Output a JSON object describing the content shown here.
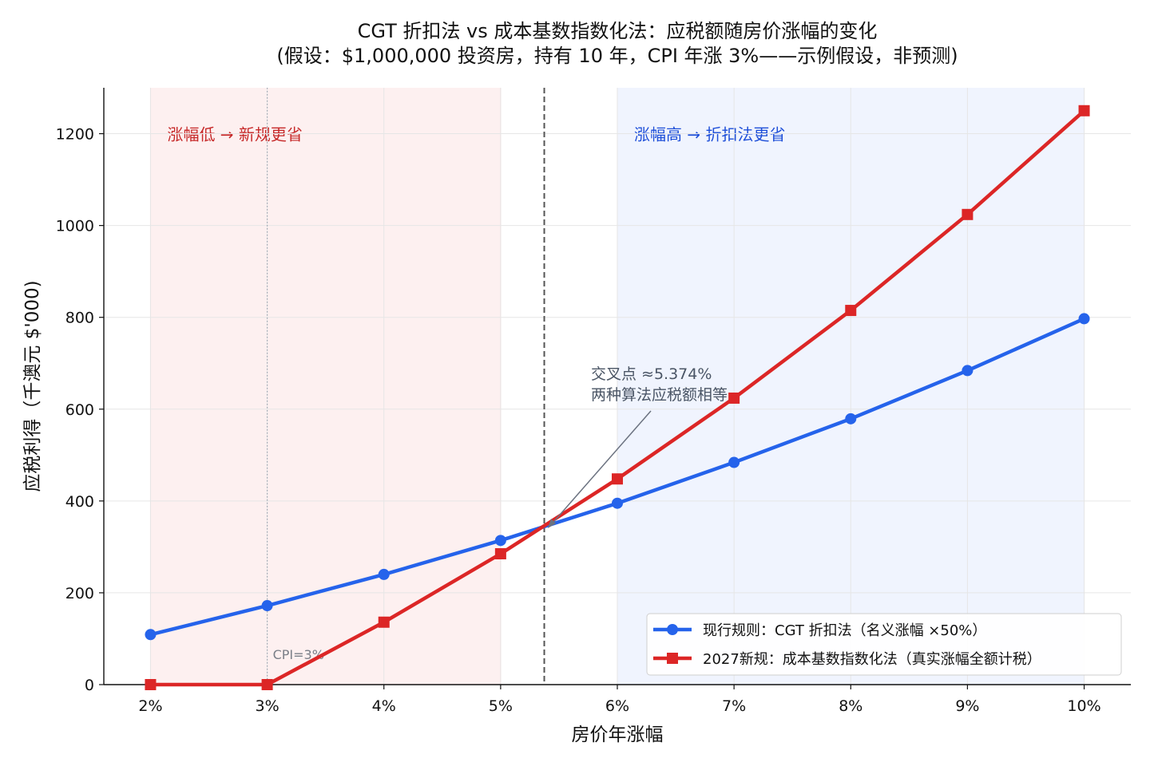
{
  "chart_data": {
    "type": "line",
    "title_lines": [
      "CGT 折扣法 vs 成本基数指数化法：应税额随房价涨幅的变化",
      "(假设：$1,000,000 投资房，持有 10 年，CPI 年涨 3%——示例假设，非预测)"
    ],
    "xlabel": "房价年涨幅",
    "ylabel": "应税利得（千澳元 $'000)",
    "categories": [
      "2%",
      "3%",
      "4%",
      "5%",
      "6%",
      "7%",
      "8%",
      "9%",
      "10%"
    ],
    "x": [
      2,
      3,
      4,
      5,
      6,
      7,
      8,
      9,
      10
    ],
    "xlim": [
      1.6,
      10.4
    ],
    "ylim": [
      0,
      1300
    ],
    "yticks": [
      0,
      200,
      400,
      600,
      800,
      1000,
      1200
    ],
    "grid": true,
    "series": [
      {
        "name": "现行规则：CGT 折扣法（名义涨幅 ×50%）",
        "marker": "circle",
        "color": "#2563eb",
        "values": [
          109,
          172,
          240,
          314,
          395,
          484,
          579,
          684,
          797
        ]
      },
      {
        "name": "2027新规：成本基数指数化法（真实涨幅全额计税）",
        "marker": "square",
        "color": "#dc2626",
        "values": [
          0,
          0,
          136,
          285,
          448,
          624,
          815,
          1024,
          1250
        ]
      }
    ],
    "regions": [
      {
        "from": 2,
        "to": 5,
        "label": "涨幅低 → 新规更省",
        "color": "#c62828"
      },
      {
        "from": 6,
        "to": 10,
        "label": "涨幅高 → 折扣法更省",
        "color": "#1d4ed8"
      }
    ],
    "crossover": {
      "x": 5.374,
      "lines": [
        "交叉点 ≈5.374%",
        "两种算法应税额相等"
      ]
    },
    "cpi_reference": {
      "x": 3,
      "label": "CPI=3%"
    },
    "legend_position": "lower-right"
  }
}
